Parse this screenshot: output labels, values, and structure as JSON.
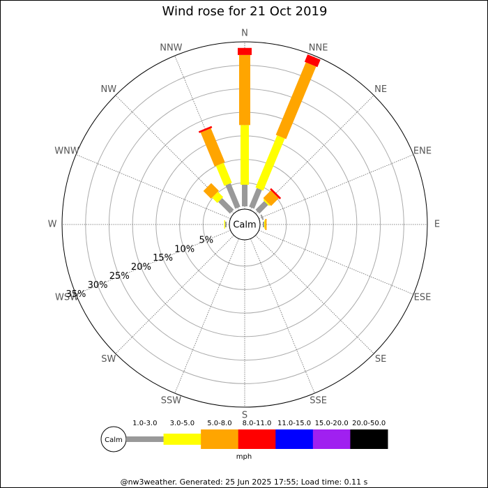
{
  "chart_data": {
    "type": "windrose",
    "title": "Wind rose for 21 Oct 2019",
    "categories": [
      "N",
      "NNE",
      "NE",
      "ENE",
      "E",
      "ESE",
      "SE",
      "SSE",
      "S",
      "SSW",
      "SW",
      "WSW",
      "W",
      "WNW",
      "NW",
      "NNW"
    ],
    "series": [
      {
        "name": "1.0-3.0",
        "color": "#999999",
        "values": [
          4.6,
          4.3,
          2.6,
          0.3,
          0.3,
          0,
          0,
          0,
          0,
          0,
          0,
          0,
          0.3,
          0,
          3.5,
          5.4
        ]
      },
      {
        "name": "3.0-5.0",
        "color": "#ffff00",
        "values": [
          12.7,
          12,
          0.3,
          0,
          0.2,
          0,
          0,
          0,
          0,
          0,
          0,
          0,
          0.2,
          0,
          1.6,
          4.6
        ]
      },
      {
        "name": "5.0-8.0",
        "color": "#ffa500",
        "values": [
          14.9,
          16.7,
          2.3,
          0,
          0.3,
          0,
          0,
          0,
          0,
          0,
          0,
          0,
          0,
          0,
          2.3,
          7.8
        ]
      },
      {
        "name": "8.0-11.0",
        "color": "#ff0000",
        "values": [
          1.5,
          1.7,
          0.4,
          0,
          0,
          0,
          0,
          0,
          0,
          0,
          0,
          0,
          0,
          0,
          0,
          0.4
        ]
      },
      {
        "name": "11.0-15.0",
        "color": "#0000ff",
        "values": [
          0,
          0,
          0,
          0,
          0,
          0,
          0,
          0,
          0,
          0,
          0,
          0,
          0,
          0,
          0,
          0
        ]
      },
      {
        "name": "15.0-20.0",
        "color": "#a020f0",
        "values": [
          0,
          0,
          0,
          0,
          0,
          0,
          0,
          0,
          0,
          0,
          0,
          0,
          0,
          0,
          0,
          0
        ]
      },
      {
        "name": "20.0-50.0",
        "color": "#000000",
        "values": [
          0,
          0,
          0,
          0,
          0,
          0,
          0,
          0,
          0,
          0,
          0,
          0,
          0,
          0,
          0,
          0
        ]
      }
    ],
    "rlim": [
      0,
      35
    ],
    "rticks": [
      {
        "value": 5,
        "label": "5%"
      },
      {
        "value": 10,
        "label": "10%"
      },
      {
        "value": 15,
        "label": "15%"
      },
      {
        "value": 20,
        "label": "20%"
      },
      {
        "value": 25,
        "label": "25%"
      },
      {
        "value": 30,
        "label": "30%"
      },
      {
        "value": 35,
        "label": "35%"
      }
    ],
    "calm_label": "Calm",
    "unit_label": "mph",
    "footer": "@nw3weather. Generated: 25 Jun 2025 17:55; Load time: 0.11 s"
  }
}
